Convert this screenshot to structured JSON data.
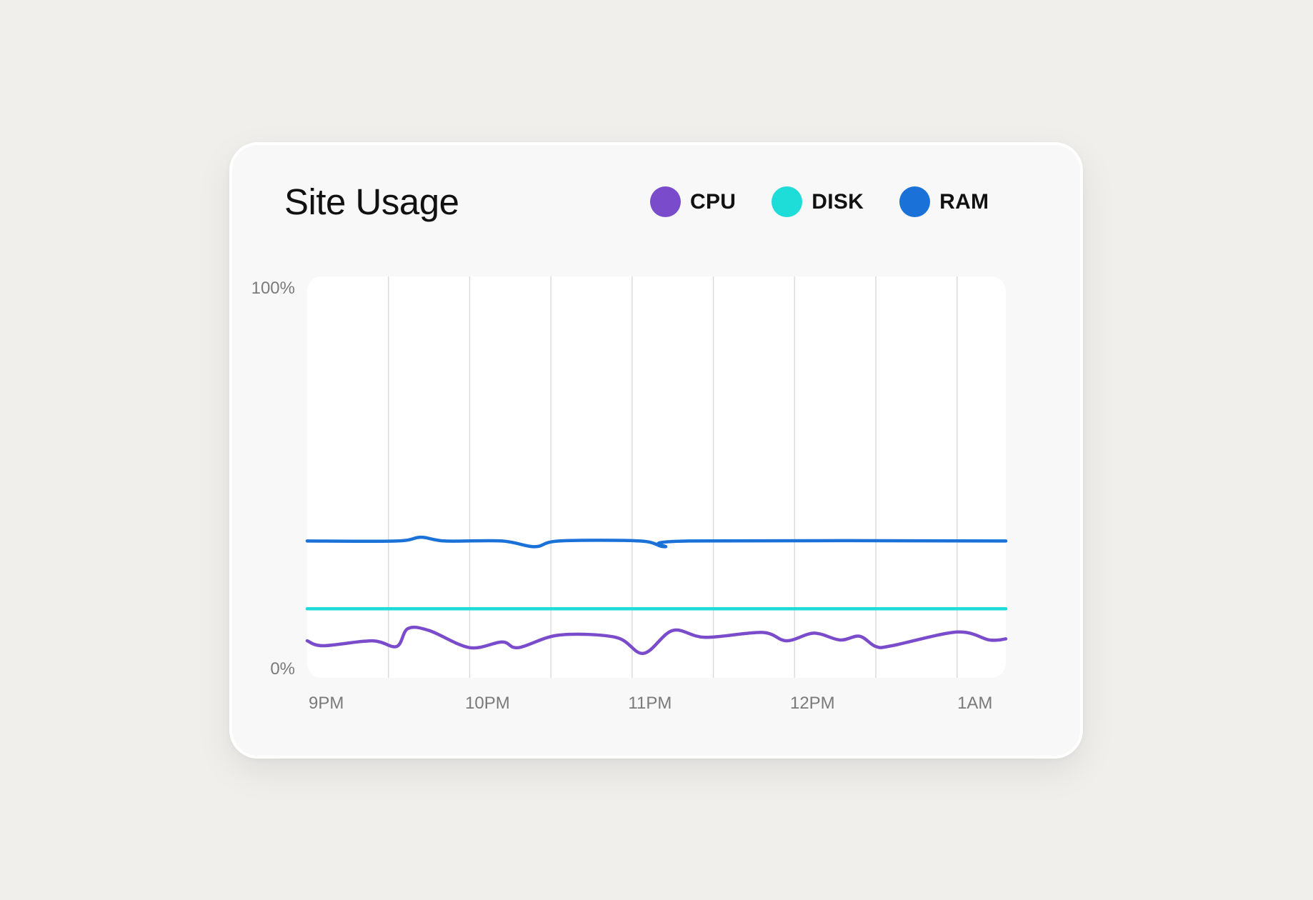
{
  "card": {
    "title": "Site Usage"
  },
  "legend": [
    {
      "label": "CPU",
      "color": "#7a4ccb"
    },
    {
      "label": "DISK",
      "color": "#1edcd8"
    },
    {
      "label": "RAM",
      "color": "#1a72d8"
    }
  ],
  "chart_data": {
    "type": "line",
    "title": "Site Usage",
    "y_ticks": [
      "100%",
      "0%"
    ],
    "x_ticks": [
      "9PM",
      "10PM",
      "11PM",
      "12PM",
      "1AM"
    ],
    "ylim": [
      0,
      100
    ],
    "x_unit": "hours after 9PM",
    "xlim": [
      0,
      4.3
    ],
    "grid": {
      "vertical": true,
      "horizontal": false
    },
    "legend_position": "top-right",
    "series": [
      {
        "name": "RAM",
        "color": "#1a72d8",
        "x": [
          0,
          0.55,
          0.7,
          0.85,
          1.2,
          1.4,
          1.55,
          2.05,
          2.2,
          2.35,
          4.3
        ],
        "y": [
          33.5,
          33.5,
          34.5,
          33.5,
          33.5,
          32.0,
          33.5,
          33.5,
          32.0,
          33.5,
          33.5
        ]
      },
      {
        "name": "DISK",
        "color": "#1edcd8",
        "x": [
          0,
          4.3
        ],
        "y": [
          15.7,
          15.7
        ]
      },
      {
        "name": "CPU",
        "color": "#7a4ccb",
        "x": [
          0,
          0.1,
          0.4,
          0.55,
          0.62,
          0.75,
          1.0,
          1.2,
          1.3,
          1.55,
          1.9,
          2.07,
          2.25,
          2.45,
          2.8,
          2.95,
          3.12,
          3.28,
          3.4,
          3.5,
          3.6,
          4.0,
          4.2,
          4.3
        ],
        "y": [
          7.3,
          6.0,
          7.3,
          5.8,
          10.5,
          10.0,
          5.5,
          7.0,
          5.5,
          8.8,
          8.2,
          4.0,
          10.0,
          8.2,
          9.5,
          7.3,
          9.3,
          7.5,
          8.5,
          5.8,
          6.0,
          9.6,
          7.5,
          7.8
        ]
      }
    ]
  }
}
